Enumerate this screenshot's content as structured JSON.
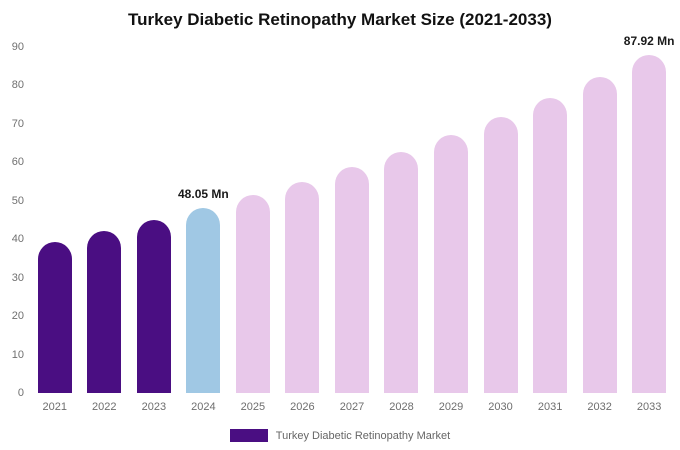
{
  "chart_data": {
    "type": "bar",
    "title": "Turkey Diabetic Retinopathy Market Size (2021-2033)",
    "categories": [
      "2021",
      "2022",
      "2023",
      "2024",
      "2025",
      "2026",
      "2027",
      "2028",
      "2029",
      "2030",
      "2031",
      "2032",
      "2033"
    ],
    "values": [
      39.3,
      42.02,
      44.94,
      48.05,
      51.38,
      54.94,
      58.75,
      62.81,
      67.17,
      71.82,
      76.8,
      82.12,
      87.92
    ],
    "unit": "Mn",
    "xlabel": "",
    "ylabel": "",
    "ylim": [
      0,
      90
    ],
    "yticks": [
      0,
      10,
      20,
      30,
      40,
      50,
      60,
      70,
      80,
      90
    ],
    "grid": false,
    "bar_roles": [
      "historical",
      "historical",
      "historical",
      "current",
      "forecast",
      "forecast",
      "forecast",
      "forecast",
      "forecast",
      "forecast",
      "forecast",
      "forecast",
      "forecast"
    ],
    "colors": {
      "historical": "#4a0e82",
      "current": "#a0c8e4",
      "forecast": "#e8c8ea"
    },
    "annotations": [
      {
        "category": "2024",
        "text": "48.05 Mn"
      },
      {
        "category": "2033",
        "text": "87.92 Mn"
      }
    ],
    "legend": {
      "label": "Turkey Diabetic Retinopathy Market",
      "position": "bottom"
    }
  }
}
